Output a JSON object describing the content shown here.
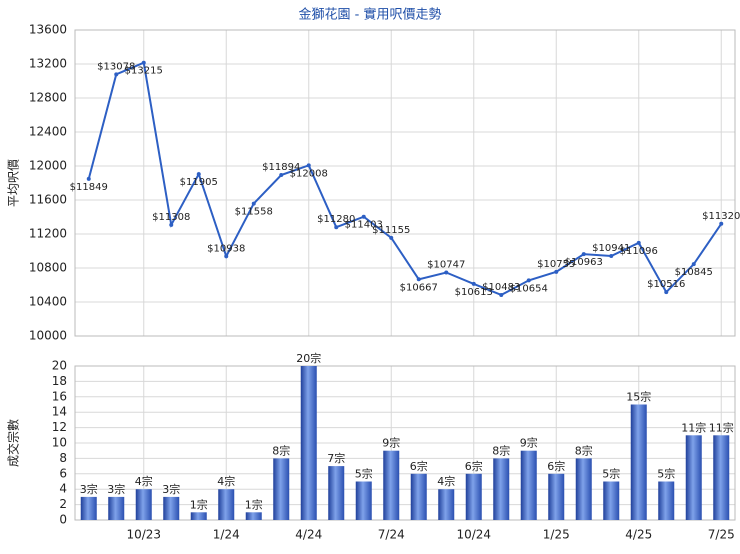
{
  "chart_data": [
    {
      "type": "line",
      "title": "金獅花園 - 實用呎價走勢",
      "y_label": "平均呎價",
      "color": "#2d5fc4",
      "values": [
        11849,
        13078,
        13215,
        11308,
        11905,
        10938,
        11558,
        11894,
        12008,
        11280,
        11403,
        11155,
        10667,
        10747,
        10613,
        10483,
        10654,
        10755,
        10963,
        10941,
        11096,
        10516,
        10845,
        11320
      ],
      "value_labels": [
        "$11849",
        "$13078",
        "$13215",
        "$11308",
        "$11905",
        "$10938",
        "$11558",
        "$11894",
        "$12008",
        "$11280",
        "$11403",
        "$11155",
        "$10667",
        "$10747",
        "$10613",
        "$10483",
        "$10654",
        "$10755",
        "$10963",
        "$10941",
        "$11096",
        "$10516",
        "$10845",
        "$11320"
      ],
      "ylim": [
        10000,
        13600
      ],
      "yticks": [
        10000,
        10400,
        10800,
        11200,
        11600,
        12000,
        12400,
        12800,
        13200,
        13600
      ],
      "grid": true
    },
    {
      "type": "bar",
      "y_label": "成交宗數",
      "color": "#3a66c8",
      "categories": [
        null,
        null,
        "10/23",
        null,
        null,
        "1/24",
        null,
        null,
        "4/24",
        null,
        null,
        "7/24",
        null,
        null,
        "10/24",
        null,
        null,
        "1/25",
        null,
        null,
        "4/25",
        null,
        null,
        "7/25"
      ],
      "values": [
        3,
        3,
        4,
        3,
        1,
        4,
        1,
        8,
        20,
        7,
        5,
        9,
        6,
        4,
        6,
        8,
        9,
        6,
        8,
        5,
        15,
        5,
        11,
        11
      ],
      "value_labels": [
        "3宗",
        "3宗",
        "4宗",
        "3宗",
        "1宗",
        "4宗",
        "1宗",
        "8宗",
        "20宗",
        "7宗",
        "5宗",
        "9宗",
        "6宗",
        "4宗",
        "6宗",
        "8宗",
        "9宗",
        "6宗",
        "8宗",
        "5宗",
        "15宗",
        "5宗",
        "11宗",
        "11宗"
      ],
      "ylim": [
        0,
        20
      ],
      "yticks": [
        0,
        2,
        4,
        6,
        8,
        10,
        12,
        14,
        16,
        18,
        20
      ],
      "grid": true
    }
  ]
}
